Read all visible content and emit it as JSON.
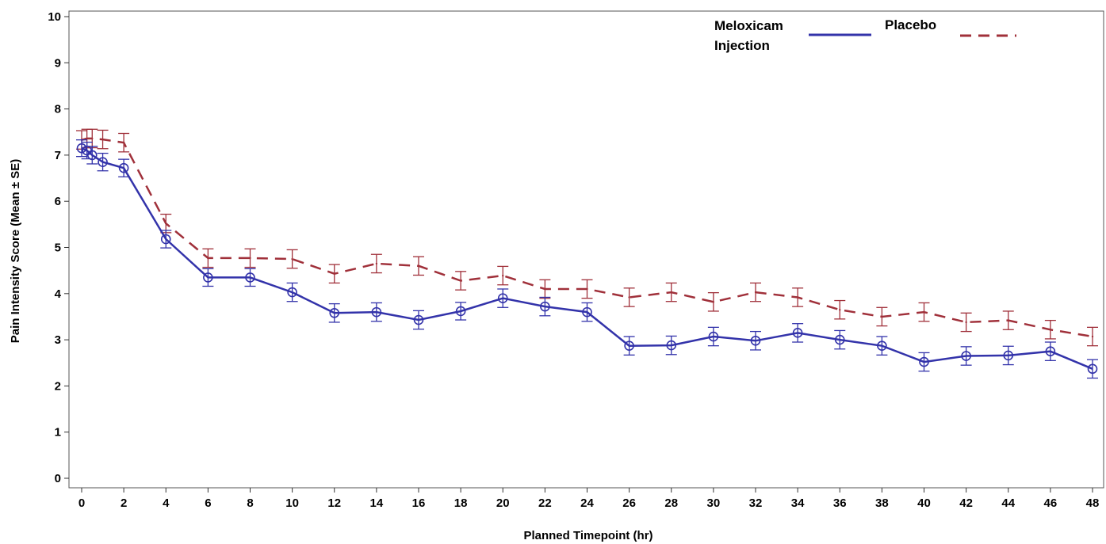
{
  "chart_data": {
    "type": "line",
    "title": "",
    "xlabel": "Planned Timepoint (hr)",
    "ylabel": "Pain Intensity Score (Mean ± SE)",
    "xlim": [
      0,
      48
    ],
    "ylim": [
      0,
      10
    ],
    "x_ticks": [
      0,
      2,
      4,
      6,
      8,
      10,
      12,
      14,
      16,
      18,
      20,
      22,
      24,
      26,
      28,
      30,
      32,
      34,
      36,
      38,
      40,
      42,
      44,
      46,
      48
    ],
    "y_ticks": [
      0,
      1,
      2,
      3,
      4,
      5,
      6,
      7,
      8,
      9,
      10
    ],
    "grid": false,
    "legend": {
      "position": "top-right",
      "entries": [
        {
          "series": 0,
          "label_lines": [
            "Meloxicam",
            "Injection"
          ]
        },
        {
          "series": 1,
          "label_lines": [
            "Placebo"
          ]
        }
      ]
    },
    "series": [
      {
        "name": "Meloxicam Injection",
        "color": "#3333aa",
        "line_style": "solid",
        "marker": "circle",
        "x": [
          0,
          0.25,
          0.5,
          1,
          2,
          4,
          6,
          8,
          10,
          12,
          14,
          16,
          18,
          20,
          22,
          24,
          26,
          28,
          30,
          32,
          34,
          36,
          38,
          40,
          42,
          44,
          46,
          48
        ],
        "values": [
          7.15,
          7.1,
          7.0,
          6.85,
          6.72,
          5.18,
          4.35,
          4.35,
          4.03,
          3.58,
          3.6,
          3.43,
          3.62,
          3.9,
          3.72,
          3.6,
          2.87,
          2.88,
          3.07,
          2.98,
          3.15,
          3.0,
          2.87,
          2.52,
          2.65,
          2.66,
          2.75,
          2.37
        ],
        "se": [
          0.18,
          0.18,
          0.19,
          0.19,
          0.19,
          0.19,
          0.19,
          0.19,
          0.2,
          0.2,
          0.2,
          0.2,
          0.19,
          0.2,
          0.2,
          0.2,
          0.2,
          0.2,
          0.2,
          0.2,
          0.2,
          0.2,
          0.2,
          0.2,
          0.2,
          0.2,
          0.2,
          0.2
        ]
      },
      {
        "name": "Placebo",
        "color": "#a0303a",
        "line_style": "dashed",
        "marker": "none",
        "x": [
          0,
          0.25,
          0.5,
          1,
          2,
          4,
          6,
          8,
          10,
          12,
          14,
          16,
          18,
          20,
          22,
          24,
          26,
          28,
          30,
          32,
          34,
          36,
          38,
          40,
          42,
          44,
          46,
          48
        ],
        "values": [
          7.33,
          7.36,
          7.36,
          7.34,
          7.27,
          5.52,
          4.77,
          4.77,
          4.75,
          4.43,
          4.65,
          4.6,
          4.28,
          4.39,
          4.1,
          4.1,
          3.92,
          4.03,
          3.82,
          4.03,
          3.92,
          3.65,
          3.5,
          3.6,
          3.38,
          3.42,
          3.22,
          3.07
        ]
      }
    ]
  }
}
